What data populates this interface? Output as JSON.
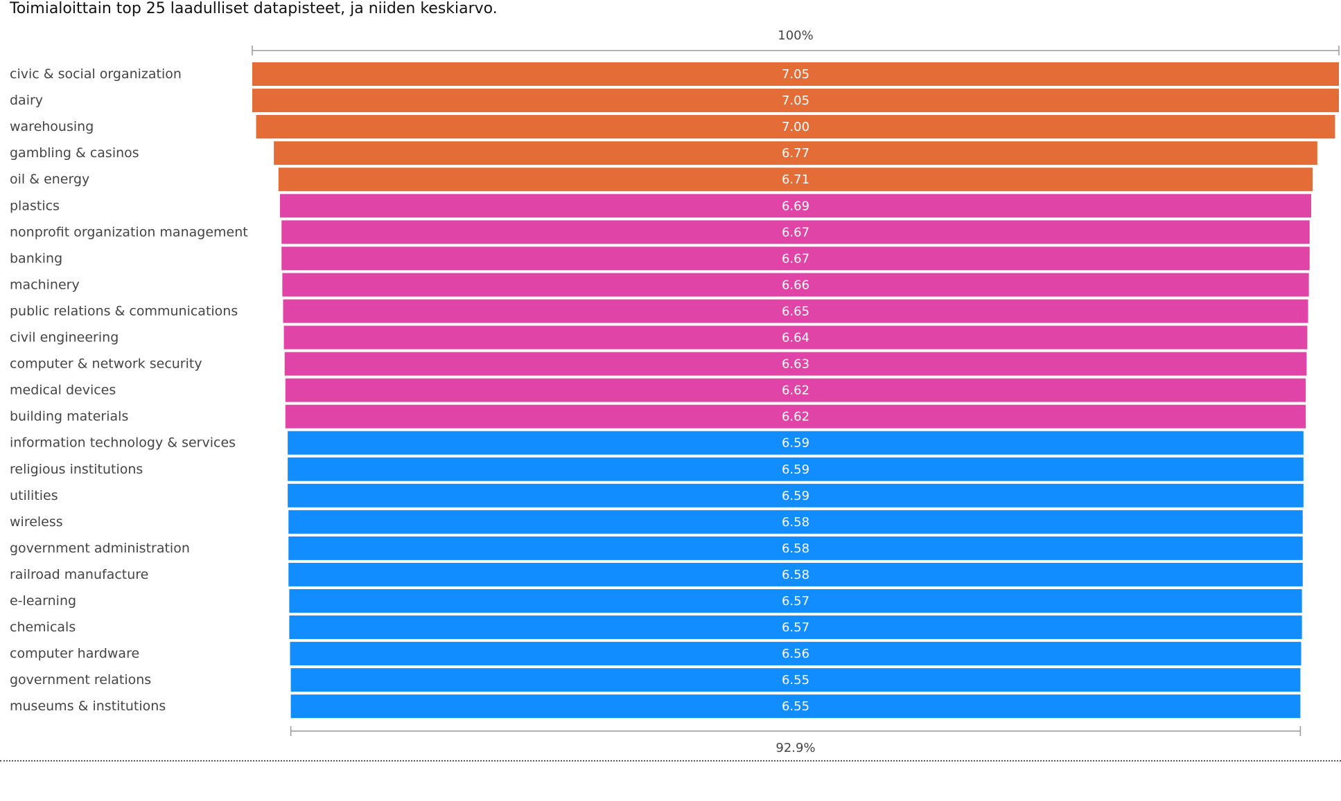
{
  "chart_data": {
    "type": "funnel",
    "title": "Toimialoittain top 25 laadulliset datapisteet, ja niiden keskiarvo.",
    "top_percent_label": "100%",
    "bottom_percent_label": "92.9%",
    "categories": [
      "civic & social organization",
      "dairy",
      "warehousing",
      "gambling & casinos",
      "oil & energy",
      "plastics",
      "nonprofit organization management",
      "banking",
      "machinery",
      "public relations & communications",
      "civil engineering",
      "computer & network security",
      "medical devices",
      "building materials",
      "information technology & services",
      "religious institutions",
      "utilities",
      "wireless",
      "government administration",
      "railroad manufacture",
      "e-learning",
      "chemicals",
      "computer hardware",
      "government relations",
      "museums & institutions"
    ],
    "values": [
      7.05,
      7.05,
      7.0,
      6.77,
      6.71,
      6.69,
      6.67,
      6.67,
      6.66,
      6.65,
      6.64,
      6.63,
      6.62,
      6.62,
      6.59,
      6.59,
      6.59,
      6.58,
      6.58,
      6.58,
      6.57,
      6.57,
      6.56,
      6.55,
      6.55
    ],
    "value_labels": [
      "7.05",
      "7.05",
      "7.00",
      "6.77",
      "6.71",
      "6.69",
      "6.67",
      "6.67",
      "6.66",
      "6.65",
      "6.64",
      "6.63",
      "6.62",
      "6.62",
      "6.59",
      "6.59",
      "6.59",
      "6.58",
      "6.58",
      "6.58",
      "6.57",
      "6.57",
      "6.56",
      "6.55",
      "6.55"
    ],
    "color_groups": [
      {
        "color": "#E46C36",
        "count": 5
      },
      {
        "color": "#E044A7",
        "count": 9
      },
      {
        "color": "#118DFF",
        "count": 11
      }
    ]
  }
}
